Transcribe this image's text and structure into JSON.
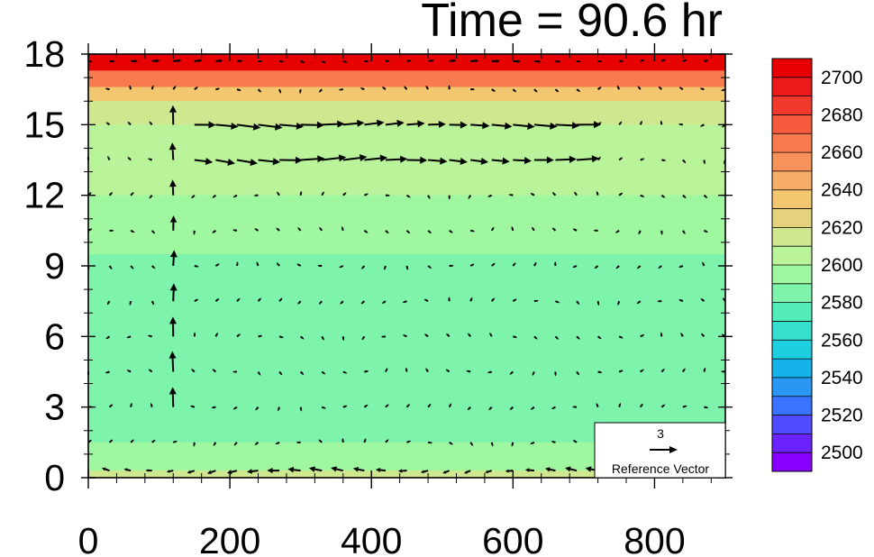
{
  "title": "Time = 90.6 hr",
  "chart_data": {
    "type": "heatmap",
    "title": "Time = 90.6 hr",
    "xlabel": "",
    "ylabel": "",
    "xlim": [
      0,
      900
    ],
    "ylim": [
      0,
      18
    ],
    "x_ticks": [
      0,
      200,
      400,
      600,
      800
    ],
    "x_tick_labels": [
      "0",
      "200",
      "400",
      "600",
      "800"
    ],
    "y_ticks": [
      0,
      3,
      6,
      9,
      12,
      15,
      18
    ],
    "y_tick_labels": [
      "0",
      "3",
      "6",
      "9",
      "12",
      "15",
      "18"
    ],
    "colorbar": {
      "min": 2490,
      "max": 2710,
      "step": 10,
      "labels": [
        "2500",
        "2520",
        "2540",
        "2560",
        "2580",
        "2600",
        "2620",
        "2640",
        "2660",
        "2680",
        "2700"
      ],
      "colors": [
        "#8a00ff",
        "#6a22ff",
        "#4f4cff",
        "#3a73ff",
        "#2a97f5",
        "#16b3ea",
        "#1fcfe0",
        "#35dfce",
        "#55ecbc",
        "#7ef3ac",
        "#9ff7a0",
        "#b9f39a",
        "#cfe88f",
        "#e6d27c",
        "#f2c76f",
        "#f6ad66",
        "#f7935a",
        "#f77b4e",
        "#f65a3e",
        "#f23a2c",
        "#ec1b19",
        "#e60000"
      ]
    },
    "contour_field": [
      {
        "y": [
          17.3,
          18
        ],
        "value": 2700
      },
      {
        "y": [
          16.6,
          17.3
        ],
        "value": 2665
      },
      {
        "y": [
          16.0,
          16.6
        ],
        "value": 2635
      },
      {
        "y": [
          15.0,
          16.0
        ],
        "value": 2612
      },
      {
        "y": [
          12.0,
          15.0
        ],
        "value": 2603
      },
      {
        "y": [
          9.5,
          12.0
        ],
        "value": 2597
      },
      {
        "y": [
          1.5,
          9.5
        ],
        "value": 2588
      },
      {
        "y": [
          0.3,
          1.5
        ],
        "value": 2593
      },
      {
        "y": [
          0,
          0.3
        ],
        "value": 2612
      }
    ],
    "reference_vector": {
      "magnitude": "3",
      "label": "Reference Vector"
    },
    "vector_field": {
      "description": "wind vectors (u, w) on a regular grid",
      "x": [
        0,
        30,
        60,
        90,
        120,
        150,
        180,
        210,
        240,
        270,
        300,
        330,
        360,
        390,
        420,
        450,
        480,
        510,
        540,
        570,
        600,
        630,
        660,
        690,
        720,
        750,
        780,
        810,
        840,
        870,
        900
      ],
      "y": [
        0.3,
        1.5,
        3,
        4.5,
        6,
        7.5,
        9,
        10.5,
        12,
        13.5,
        15,
        16.5,
        17.7
      ]
    }
  }
}
